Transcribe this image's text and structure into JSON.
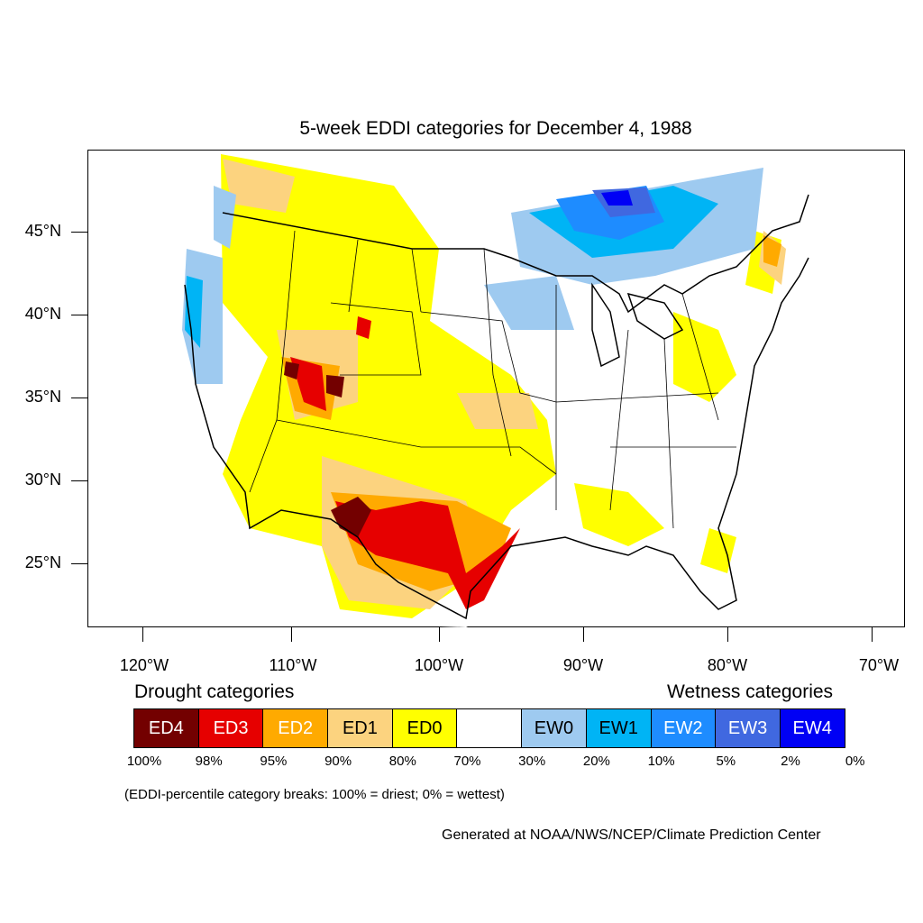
{
  "title": "5-week EDDI categories for December 4, 1988",
  "map": {
    "lat_labels": [
      "45°N",
      "40°N",
      "35°N",
      "30°N",
      "25°N"
    ],
    "lon_labels": [
      "120°W",
      "110°W",
      "100°W",
      "90°W",
      "80°W",
      "70°W"
    ]
  },
  "legend": {
    "drought_heading": "Drought categories",
    "wetness_heading": "Wetness categories",
    "categories": [
      {
        "label": "ED4",
        "color": "#730000",
        "text_color": "#ffffff"
      },
      {
        "label": "ED3",
        "color": "#e60000",
        "text_color": "#ffffff"
      },
      {
        "label": "ED2",
        "color": "#ffaa00",
        "text_color": "#ffffff"
      },
      {
        "label": "ED1",
        "color": "#fcd37f",
        "text_color": "#000000"
      },
      {
        "label": "ED0",
        "color": "#ffff00",
        "text_color": "#000000"
      },
      {
        "label": "",
        "color": "#ffffff",
        "text_color": "#000000"
      },
      {
        "label": "EW0",
        "color": "#9ecaf0",
        "text_color": "#000000"
      },
      {
        "label": "EW1",
        "color": "#00b4f5",
        "text_color": "#000000"
      },
      {
        "label": "EW2",
        "color": "#1e8cff",
        "text_color": "#ffffff"
      },
      {
        "label": "EW3",
        "color": "#4068e0",
        "text_color": "#ffffff"
      },
      {
        "label": "EW4",
        "color": "#0000f5",
        "text_color": "#ffffff"
      }
    ],
    "percent_breaks": [
      "100%",
      "98%",
      "95%",
      "90%",
      "80%",
      "70%",
      "30%",
      "20%",
      "10%",
      "5%",
      "2%",
      "0%"
    ]
  },
  "note": "(EDDI-percentile category breaks: 100% = driest; 0% = wettest)",
  "credit": "Generated at NOAA/NWS/NCEP/Climate Prediction Center"
}
